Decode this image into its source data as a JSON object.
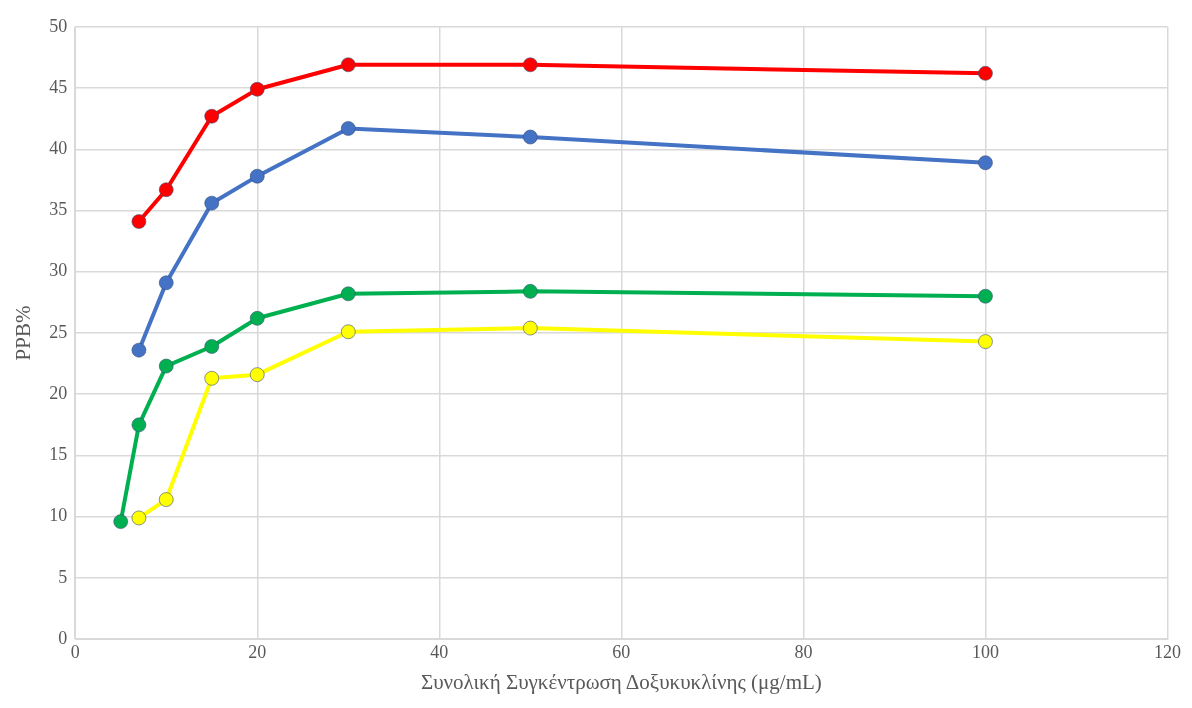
{
  "chart_data": {
    "type": "line",
    "xlabel": "Συνολική Συγκέντρωση Δοξυκυκλίνης (μg/mL)",
    "ylabel": "PPB%",
    "xlim": [
      0,
      120
    ],
    "xticks": [
      0,
      20,
      40,
      60,
      80,
      100,
      120
    ],
    "ylim": [
      0,
      50
    ],
    "yticks": [
      0,
      5,
      10,
      15,
      20,
      25,
      30,
      35,
      40,
      45,
      50
    ],
    "grid": true,
    "legend": false,
    "marker": "circle",
    "line_style": "solid",
    "series": [
      {
        "color": "#ff0000",
        "x": [
          7,
          10,
          15,
          20,
          30,
          50,
          100
        ],
        "values": [
          34.1,
          36.7,
          42.7,
          44.9,
          46.9,
          46.9,
          46.2
        ]
      },
      {
        "color": "#4472c4",
        "x": [
          7,
          10,
          15,
          20,
          30,
          50,
          100
        ],
        "values": [
          23.6,
          29.1,
          35.6,
          37.8,
          41.7,
          41.0,
          38.9
        ]
      },
      {
        "color": "#00b050",
        "x": [
          5,
          7,
          10,
          15,
          20,
          30,
          50,
          100
        ],
        "values": [
          9.6,
          17.5,
          22.3,
          23.9,
          26.2,
          28.2,
          28.4,
          28.0
        ]
      },
      {
        "color": "#ffff00",
        "x": [
          7,
          10,
          15,
          20,
          30,
          50,
          100
        ],
        "values": [
          9.9,
          11.4,
          21.3,
          21.6,
          25.1,
          25.4,
          24.3
        ]
      }
    ]
  }
}
